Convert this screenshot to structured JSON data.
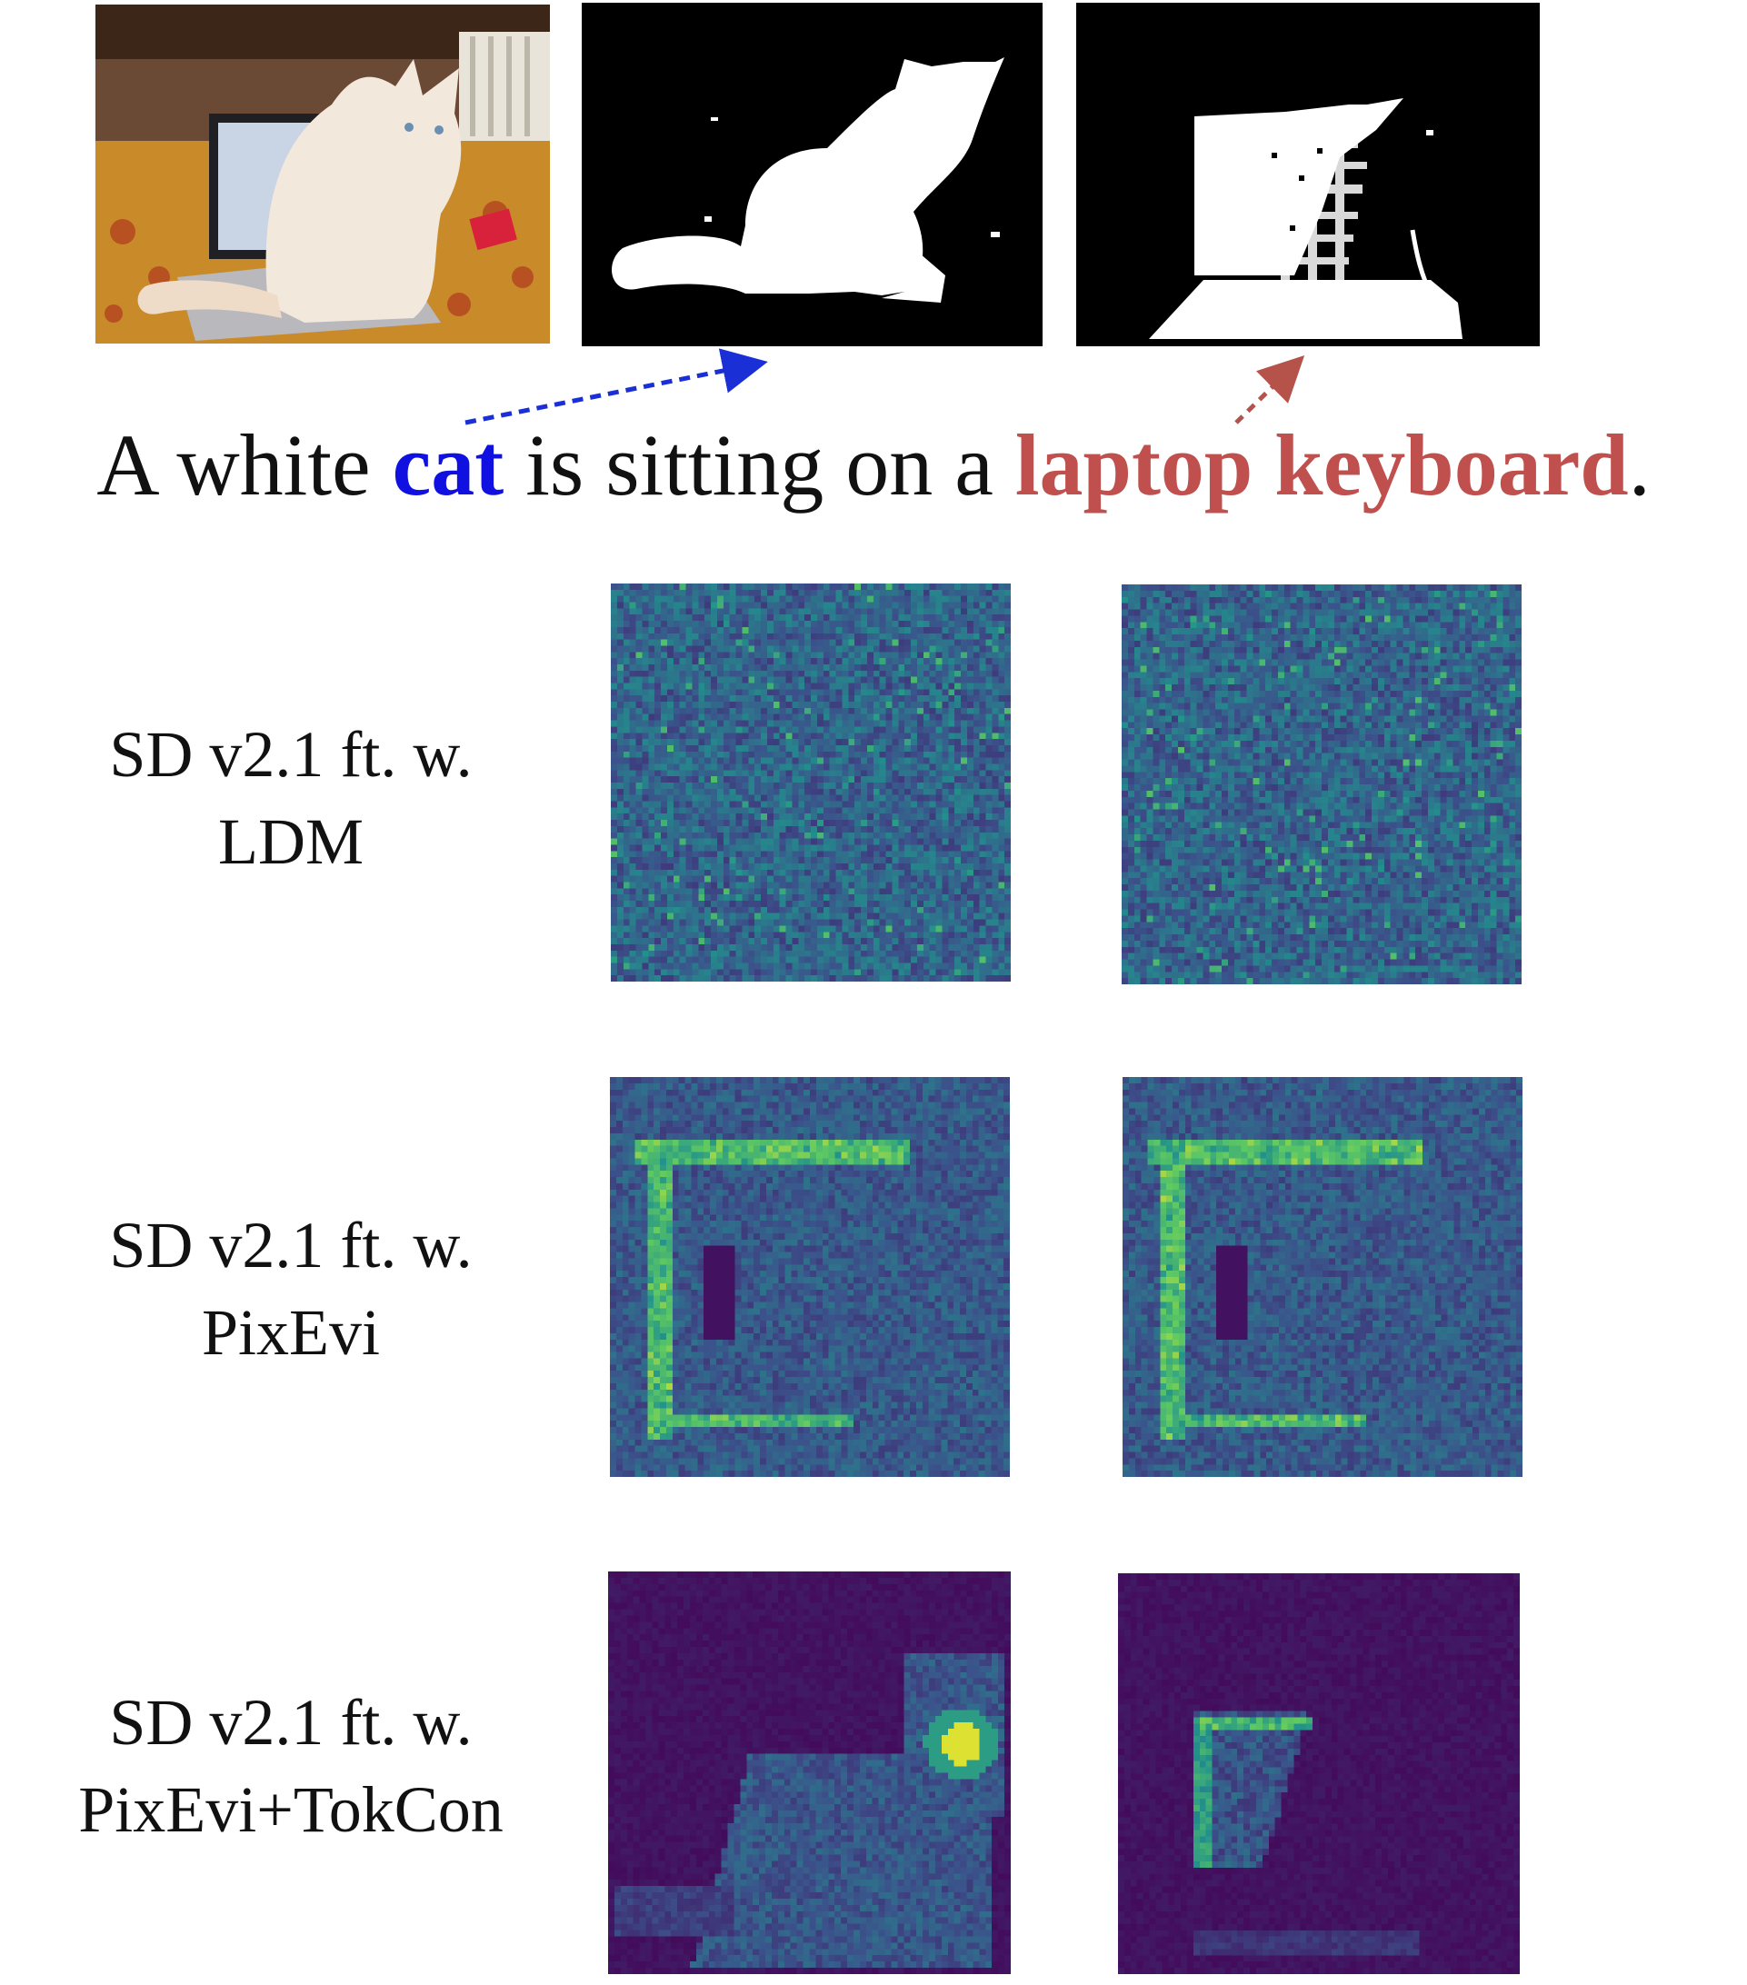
{
  "caption": {
    "prefix": "A white ",
    "word1": "cat",
    "middle": " is sitting on a ",
    "word2": "laptop keyboard",
    "suffix": ".",
    "word1_color": "#1010e0",
    "word2_color": "#c0504d"
  },
  "rows": [
    {
      "line1": "SD v2.1 ft. w.",
      "line2": "LDM"
    },
    {
      "line1": "SD v2.1 ft. w.",
      "line2": "PixEvi"
    },
    {
      "line1": "SD v2.1 ft. w.",
      "line2": "PixEvi+TokCon"
    }
  ],
  "colors": {
    "heatmap_low": "#3d2f82",
    "heatmap_mid": "#2a8b8c",
    "heatmap_high": "#fde725",
    "mask_fg": "#ffffff",
    "mask_bg": "#000000"
  }
}
